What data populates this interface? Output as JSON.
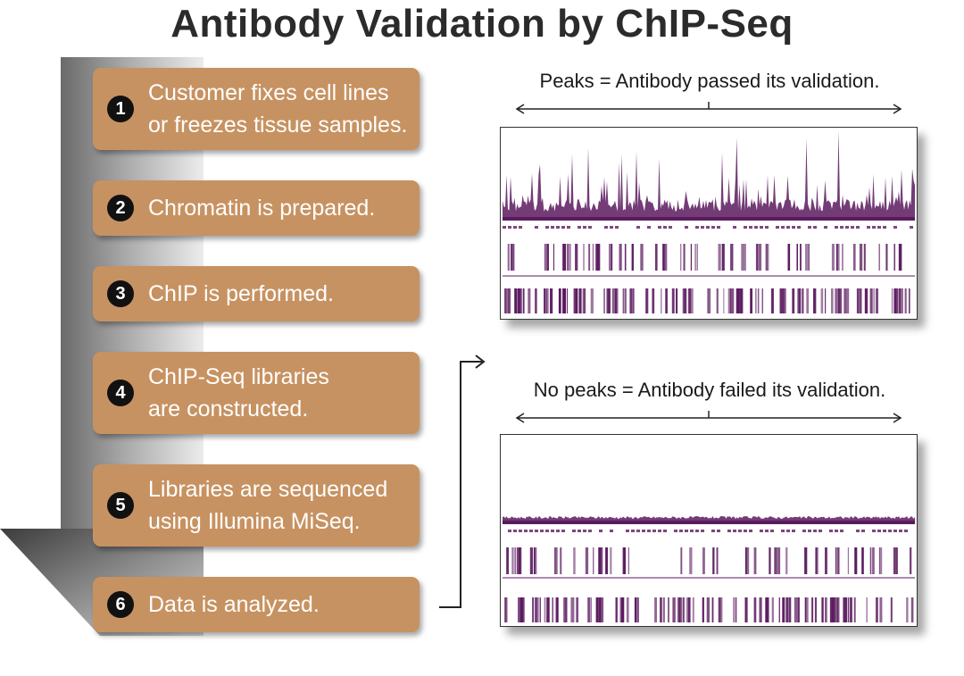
{
  "title": "Antibody Validation by ChIP-Seq",
  "steps": [
    {
      "number": "1",
      "text": "Customer fixes cell lines\nor freezes tissue samples."
    },
    {
      "number": "2",
      "text": "Chromatin is prepared."
    },
    {
      "number": "3",
      "text": "ChIP is performed."
    },
    {
      "number": "4",
      "text": "ChIP-Seq libraries\nare constructed."
    },
    {
      "number": "5",
      "text": "Libraries are sequenced\nusing Illumina MiSeq."
    },
    {
      "number": "6",
      "text": "Data is analyzed."
    }
  ],
  "results": {
    "pass_caption": "Peaks = Antibody passed its validation.",
    "fail_caption": "No peaks = Antibody failed its validation."
  },
  "colors": {
    "step_box": "#c79261",
    "track": "#5a1a5e",
    "arrow_band_dark": "#6a6a6a",
    "arrow_band_light": "#e6e6e6"
  }
}
